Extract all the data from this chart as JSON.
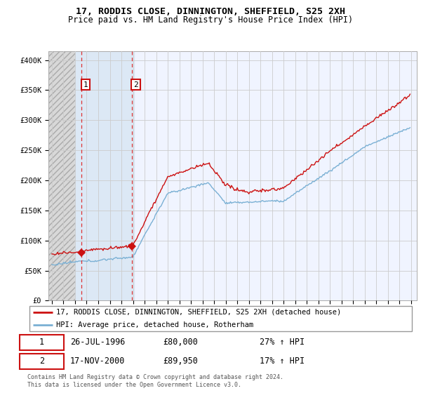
{
  "title_line1": "17, RODDIS CLOSE, DINNINGTON, SHEFFIELD, S25 2XH",
  "title_line2": "Price paid vs. HM Land Registry's House Price Index (HPI)",
  "yticks": [
    0,
    50000,
    100000,
    150000,
    200000,
    250000,
    300000,
    350000,
    400000
  ],
  "ytick_labels": [
    "£0",
    "£50K",
    "£100K",
    "£150K",
    "£200K",
    "£250K",
    "£300K",
    "£350K",
    "£400K"
  ],
  "ylim": [
    0,
    415000
  ],
  "xlim_start": 1993.7,
  "xlim_end": 2025.5,
  "hatch_end": 1996.0,
  "blue_region_start": 1996.0,
  "blue_region_end": 2001.1,
  "sale1_date": 1996.57,
  "sale1_price": 80000,
  "sale2_date": 2000.88,
  "sale2_price": 89950,
  "hpi_color": "#7ab0d4",
  "price_color": "#cc1111",
  "vline_color": "#dd3333",
  "legend_line1": "17, RODDIS CLOSE, DINNINGTON, SHEFFIELD, S25 2XH (detached house)",
  "legend_line2": "HPI: Average price, detached house, Rotherham",
  "table_rows": [
    [
      "1",
      "26-JUL-1996",
      "£80,000",
      "27% ↑ HPI"
    ],
    [
      "2",
      "17-NOV-2000",
      "£89,950",
      "17% ↑ HPI"
    ]
  ],
  "footnote": "Contains HM Land Registry data © Crown copyright and database right 2024.\nThis data is licensed under the Open Government Licence v3.0.",
  "hatch_color": "#cccccc",
  "blue_region_color": "#dce8f5",
  "grid_color": "#cccccc",
  "plot_bg": "#f0f4ff"
}
